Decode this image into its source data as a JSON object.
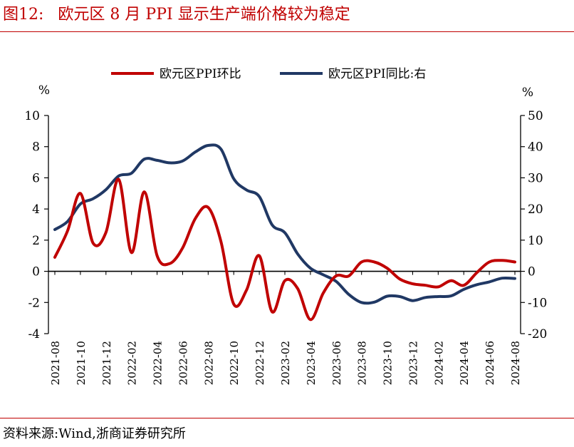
{
  "figure": {
    "number": "图12:",
    "title": "欧元区 8 月 PPI 显示生产端价格较为稳定",
    "source": "资料来源:Wind,浙商证券研究所"
  },
  "chart_data": {
    "type": "line",
    "left_axis": {
      "unit": "%",
      "ylim": [
        -4,
        10
      ],
      "ticks": [
        -4,
        -2,
        0,
        2,
        4,
        6,
        8,
        10
      ]
    },
    "right_axis": {
      "unit": "%",
      "ylim": [
        -20,
        50
      ],
      "ticks": [
        -20,
        -10,
        0,
        10,
        20,
        30,
        40,
        50
      ]
    },
    "x_tick_labels": [
      "2021-08",
      "2021-10",
      "2021-12",
      "2022-02",
      "2022-04",
      "2022-06",
      "2022-08",
      "2022-10",
      "2022-12",
      "2023-02",
      "2023-04",
      "2023-06",
      "2023-08",
      "2023-10",
      "2023-12",
      "2024-02",
      "2024-04",
      "2024-06",
      "2024-08"
    ],
    "x": [
      "2021-08",
      "2021-09",
      "2021-10",
      "2021-11",
      "2021-12",
      "2022-01",
      "2022-02",
      "2022-03",
      "2022-04",
      "2022-05",
      "2022-06",
      "2022-07",
      "2022-08",
      "2022-09",
      "2022-10",
      "2022-11",
      "2022-12",
      "2023-01",
      "2023-02",
      "2023-03",
      "2023-04",
      "2023-05",
      "2023-06",
      "2023-07",
      "2023-08",
      "2023-09",
      "2023-10",
      "2023-11",
      "2023-12",
      "2024-01",
      "2024-02",
      "2024-03",
      "2024-04",
      "2024-05",
      "2024-06",
      "2024-07",
      "2024-08"
    ],
    "legend_position": "top-center",
    "grid": false,
    "colors": {
      "mom": "#c00000",
      "yoy": "#203864"
    },
    "series": [
      {
        "name": "欧元区PPI环比",
        "axis": "left",
        "values": [
          0.9,
          2.6,
          5.0,
          1.8,
          2.5,
          5.9,
          1.2,
          5.1,
          1.0,
          0.5,
          1.5,
          3.4,
          4.1,
          1.9,
          -2.1,
          -1.2,
          1.0,
          -2.6,
          -0.6,
          -1.1,
          -3.1,
          -1.4,
          -0.3,
          -0.3,
          0.6,
          0.6,
          0.2,
          -0.5,
          -0.8,
          -0.9,
          -1.0,
          -0.6,
          -0.9,
          -0.1,
          0.6,
          0.7,
          0.6
        ]
      },
      {
        "name": "欧元区PPI同比:右",
        "axis": "right",
        "values": [
          13.4,
          16.0,
          21.6,
          23.3,
          26.2,
          30.6,
          31.5,
          36.0,
          35.6,
          34.8,
          35.4,
          38.3,
          40.4,
          39.2,
          29.7,
          26.1,
          24.0,
          14.9,
          12.4,
          5.6,
          1.0,
          -1.1,
          -3.2,
          -7.4,
          -10.0,
          -9.9,
          -8.0,
          -8.1,
          -9.4,
          -8.4,
          -8.1,
          -7.9,
          -5.8,
          -4.3,
          -3.4,
          -2.2,
          -2.3
        ]
      }
    ]
  }
}
